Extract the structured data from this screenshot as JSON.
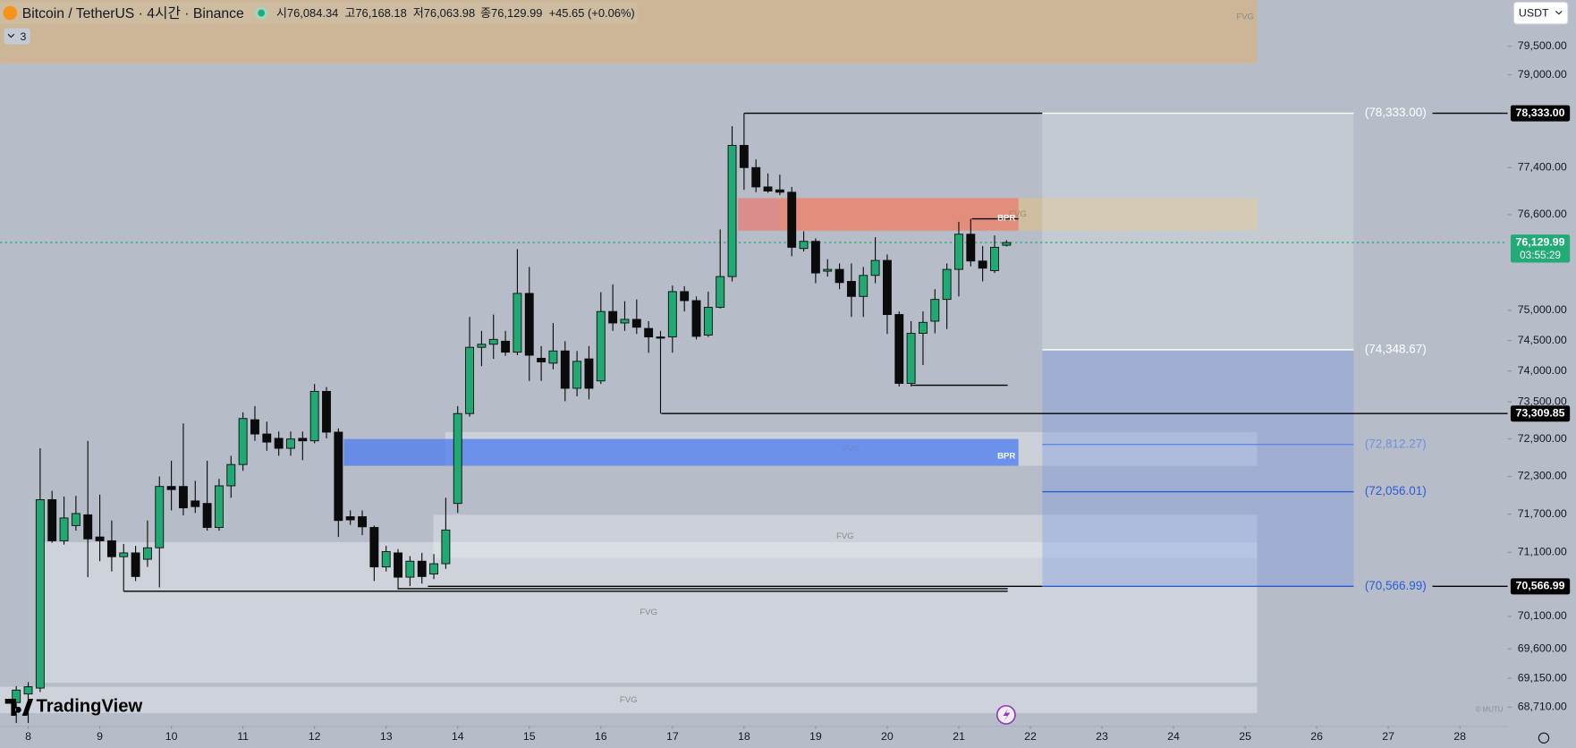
{
  "chart_data": {
    "type": "candlestick",
    "title": "Bitcoin / TetherUS · 4시간 · Binance",
    "legend_values": [
      "시76,084.34",
      "고76,168.18",
      "저76,063.98",
      "종76,129.99",
      "+45.65 (+0.06%)"
    ],
    "indicator_count": "3",
    "currency": "USDT",
    "branding": "TradingView",
    "credit": "© MUTU",
    "x": [
      -1,
      0,
      1,
      2,
      3,
      4,
      5,
      6,
      7,
      8,
      9,
      10,
      11,
      12,
      13,
      14,
      15,
      16,
      17,
      18,
      19,
      20,
      21,
      22,
      23,
      24,
      25,
      26,
      27,
      28,
      29,
      30,
      31,
      32,
      33,
      34,
      35,
      36,
      37,
      38,
      39,
      40,
      41,
      42,
      43,
      44,
      45,
      46,
      47,
      48,
      49,
      50,
      51,
      52,
      53,
      54,
      55,
      56,
      57,
      58,
      59,
      60,
      61,
      62,
      63,
      64,
      65,
      66,
      67,
      68,
      69,
      70,
      71,
      72,
      73,
      74,
      75,
      76,
      77,
      78,
      79,
      80,
      81,
      82
    ],
    "open": [
      68780,
      68910,
      69000,
      71930,
      71280,
      71520,
      71690,
      71340,
      71280,
      71030,
      71090,
      70990,
      71170,
      72140,
      72140,
      71910,
      71870,
      71490,
      72150,
      72490,
      73210,
      72980,
      72910,
      72750,
      72910,
      72870,
      73670,
      73010,
      71660,
      71660,
      71490,
      70870,
      71090,
      70710,
      70960,
      70760,
      70920,
      71870,
      73310,
      74390,
      74440,
      74490,
      74310,
      75280,
      74210,
      74130,
      74330,
      73720,
      74200,
      73840,
      74980,
      74790,
      74850,
      74700,
      74560,
      74560,
      75310,
      75160,
      74590,
      75050,
      75560,
      77780,
      77400,
      77070,
      77020,
      76980,
      76030,
      76150,
      75650,
      75680,
      75480,
      75230,
      75580,
      75830,
      74930,
      73800,
      74620,
      74820,
      75180,
      75680,
      76270,
      75820,
      75660,
      76084.34
    ],
    "high": [
      69030,
      69090,
      72750,
      72070,
      71980,
      71990,
      72870,
      72010,
      71600,
      71230,
      71200,
      71600,
      72300,
      72550,
      73150,
      72230,
      72550,
      72260,
      72630,
      73330,
      73430,
      73180,
      73020,
      73020,
      73020,
      73790,
      73740,
      73070,
      71760,
      71760,
      71520,
      71200,
      71150,
      71040,
      71090,
      71070,
      71960,
      73430,
      74890,
      74660,
      74930,
      74660,
      76020,
      75720,
      74410,
      74790,
      74490,
      74330,
      74410,
      75300,
      75430,
      75150,
      75180,
      74820,
      74660,
      75410,
      75400,
      75230,
      75310,
      76350,
      78110,
      78333,
      77540,
      77300,
      77280,
      77070,
      76320,
      76200,
      75850,
      75780,
      75780,
      75720,
      76220,
      75930,
      74980,
      74820,
      74980,
      75350,
      75780,
      76480,
      76530,
      76070,
      76250,
      76168.18
    ],
    "low": [
      68470,
      68470,
      68940,
      71250,
      71220,
      71440,
      70710,
      70960,
      70800,
      70490,
      70650,
      70870,
      70550,
      71760,
      71680,
      71720,
      71440,
      71440,
      71960,
      72390,
      72870,
      72710,
      72630,
      72630,
      72560,
      72830,
      72910,
      71340,
      71530,
      71370,
      70650,
      70800,
      70520,
      70570,
      70610,
      70680,
      70840,
      71720,
      73260,
      74080,
      74200,
      74250,
      74260,
      73840,
      73840,
      74030,
      73510,
      73590,
      73540,
      73790,
      74660,
      74660,
      74610,
      74300,
      73310,
      74300,
      74980,
      74520,
      74560,
      75030,
      75480,
      77020,
      76980,
      76970,
      76930,
      75900,
      75980,
      75450,
      75560,
      75350,
      74890,
      74890,
      75450,
      74610,
      73750,
      73750,
      74100,
      74620,
      74690,
      75230,
      75730,
      75480,
      75620,
      76063.98
    ],
    "close": [
      68970,
      69020,
      71930,
      71280,
      71640,
      71710,
      71310,
      71280,
      71030,
      71090,
      70720,
      71170,
      72140,
      72090,
      71800,
      71820,
      71490,
      72150,
      72490,
      73230,
      72980,
      72850,
      72750,
      72900,
      72870,
      73670,
      73010,
      71600,
      71610,
      71500,
      70870,
      71110,
      70710,
      70960,
      70720,
      70920,
      71450,
      73310,
      74390,
      74440,
      74520,
      74310,
      75280,
      74260,
      74150,
      74330,
      73720,
      74160,
      73720,
      74980,
      74790,
      74850,
      74720,
      74560,
      74540,
      75310,
      75160,
      74570,
      75050,
      75560,
      77780,
      77400,
      77070,
      77000,
      76980,
      76050,
      76150,
      75620,
      75680,
      75460,
      75230,
      75580,
      75830,
      74930,
      73800,
      74620,
      74800,
      75180,
      75680,
      76270,
      75820,
      75700,
      76050,
      76129.99
    ],
    "up_color": "#20a972",
    "down_color": "#0b0b0b",
    "log_scale": true,
    "xlim": [
      -2.36,
      124
    ],
    "xticks": [
      {
        "value": 0,
        "label": "8"
      },
      {
        "value": 6,
        "label": "9"
      },
      {
        "value": 12,
        "label": "10"
      },
      {
        "value": 18,
        "label": "11"
      },
      {
        "value": 24,
        "label": "12"
      },
      {
        "value": 30,
        "label": "13"
      },
      {
        "value": 36,
        "label": "14"
      },
      {
        "value": 42,
        "label": "15"
      },
      {
        "value": 48,
        "label": "16"
      },
      {
        "value": 54,
        "label": "17"
      },
      {
        "value": 60,
        "label": "18"
      },
      {
        "value": 66,
        "label": "19"
      },
      {
        "value": 72,
        "label": "20"
      },
      {
        "value": 78,
        "label": "21"
      },
      {
        "value": 84,
        "label": "22"
      },
      {
        "value": 90,
        "label": "23"
      },
      {
        "value": 96,
        "label": "24"
      },
      {
        "value": 102,
        "label": "25"
      },
      {
        "value": 108,
        "label": "26"
      },
      {
        "value": 114,
        "label": "27"
      },
      {
        "value": 120,
        "label": "28"
      }
    ],
    "ylim": [
      68427,
      80316
    ],
    "yticks": [
      {
        "value": 79500,
        "label": "79,500.00"
      },
      {
        "value": 79000,
        "label": "79,000.00"
      },
      {
        "value": 77400,
        "label": "77,400.00"
      },
      {
        "value": 76600,
        "label": "76,600.00"
      },
      {
        "value": 75000,
        "label": "75,000.00"
      },
      {
        "value": 74500,
        "label": "74,500.00"
      },
      {
        "value": 74000,
        "label": "74,000.00"
      },
      {
        "value": 73500,
        "label": "73,500.00"
      },
      {
        "value": 72900,
        "label": "72,900.00"
      },
      {
        "value": 72300,
        "label": "72,300.00"
      },
      {
        "value": 71700,
        "label": "71,700.00"
      },
      {
        "value": 71100,
        "label": "71,100.00"
      },
      {
        "value": 70100,
        "label": "70,100.00"
      },
      {
        "value": 69600,
        "label": "69,600.00"
      },
      {
        "value": 69150,
        "label": "69,150.00"
      },
      {
        "value": 68710,
        "label": "68,710.00"
      }
    ],
    "zones": [
      {
        "label": "FVG",
        "x": [
          -2.36,
          103
        ],
        "y": [
          79200,
          80316
        ],
        "color": "rgba(222,176,112,0.55)",
        "label_color": "#8a8a8a",
        "anchor": "end"
      },
      {
        "label": "FVG",
        "x": [
          1.0,
          103
        ],
        "y": [
          69080,
          71260
        ],
        "color": "rgba(236,238,242,0.45)",
        "label_color": "#8a8a8a",
        "anchor": "center"
      },
      {
        "label": "FVG",
        "x": [
          -2.36,
          103
        ],
        "y": [
          68620,
          69020
        ],
        "color": "rgba(236,238,242,0.45)",
        "label_color": "#8a8a8a",
        "anchor": "center"
      },
      {
        "label": "FVG",
        "x": [
          33.95,
          103
        ],
        "y": [
          71010,
          71690
        ],
        "color": "rgba(236,238,242,0.4)",
        "label_color": "#8a8a8a",
        "anchor": "center"
      },
      {
        "label": "FVG",
        "x": [
          34.96,
          103
        ],
        "y": [
          72470,
          73010
        ],
        "color": "rgba(236,238,242,0.4)",
        "label_color": "#6f86c9",
        "anchor": "center"
      },
      {
        "label": "BPR",
        "x": [
          26.45,
          83
        ],
        "y": [
          72470,
          72900
        ],
        "color": "rgba(70,120,240,0.72)",
        "label_color": "#ffffff",
        "anchor": "end"
      },
      {
        "label": "FVG",
        "x": [
          62.9,
          103
        ],
        "y": [
          76330,
          76880
        ],
        "color": "rgba(232,192,120,0.5)",
        "label_color": "#a08a6a",
        "anchor": "center"
      },
      {
        "label": "BPR",
        "x": [
          59.5,
          83
        ],
        "y": [
          76330,
          76880
        ],
        "color": "rgba(240,110,100,0.6)",
        "label_color": "#ffffff",
        "anchor": "end"
      },
      {
        "x": [
          85,
          111.1
        ],
        "y": [
          74348.67,
          78333
        ],
        "color": "rgba(228,231,236,0.3)"
      },
      {
        "x": [
          85,
          111.1
        ],
        "y": [
          70566.99,
          74348.67
        ],
        "color": "rgba(120,150,225,0.35)"
      }
    ],
    "levels": [
      {
        "value": 78333,
        "x": [
          60,
          85
        ],
        "color": "#000000"
      },
      {
        "value": 78333,
        "x": [
          85,
          111.1
        ],
        "color": "#ffffff",
        "label": "(78,333.00)",
        "label_color": "#ffffff"
      },
      {
        "value": 78333,
        "x": [
          117.7,
          124
        ],
        "color": "#000000"
      },
      {
        "value": 74348.67,
        "x": [
          85,
          111.1
        ],
        "color": "#ffffff",
        "label": "(74,348.67)",
        "label_color": "#ffffff"
      },
      {
        "value": 73309.85,
        "x": [
          53.07,
          124
        ],
        "color": "#000000"
      },
      {
        "value": 72812.27,
        "x": [
          85,
          111.1
        ],
        "color": "#5f86e0",
        "label": "(72,812.27)",
        "label_color": "#6f8fe0"
      },
      {
        "value": 72056.01,
        "x": [
          85,
          111.1
        ],
        "color": "#2a5cd6",
        "label": "(72,056.01)",
        "label_color": "#2a5cd6"
      },
      {
        "value": 70566.99,
        "x": [
          33.5,
          85
        ],
        "color": "#000000"
      },
      {
        "value": 70566.99,
        "x": [
          85,
          111.1
        ],
        "color": "#2a5cd6",
        "label": "(70,566.99)",
        "label_color": "#2a5cd6"
      },
      {
        "value": 70566.99,
        "x": [
          117.7,
          124
        ],
        "color": "#000000"
      },
      {
        "value": 70490,
        "x": [
          8.0,
          82.1
        ],
        "color": "#000000"
      },
      {
        "value": 70530,
        "x": [
          31,
          82.1
        ],
        "color": "#000000"
      },
      {
        "value": 73770,
        "x": [
          74.05,
          82.1
        ],
        "color": "#000000"
      },
      {
        "value": 76530,
        "x": [
          79.1,
          83
        ],
        "color": "#000000"
      }
    ],
    "price_tags": [
      {
        "value": 78333,
        "label": "78,333.00",
        "color": "#000000"
      },
      {
        "value": 73309.85,
        "label": "73,309.85",
        "color": "#000000"
      },
      {
        "value": 70566.99,
        "label": "70,566.99",
        "color": "#000000"
      }
    ],
    "current": {
      "value": 76129.99,
      "label": "76,129.99",
      "countdown": "03:55:29",
      "color": "#22ab76"
    }
  }
}
